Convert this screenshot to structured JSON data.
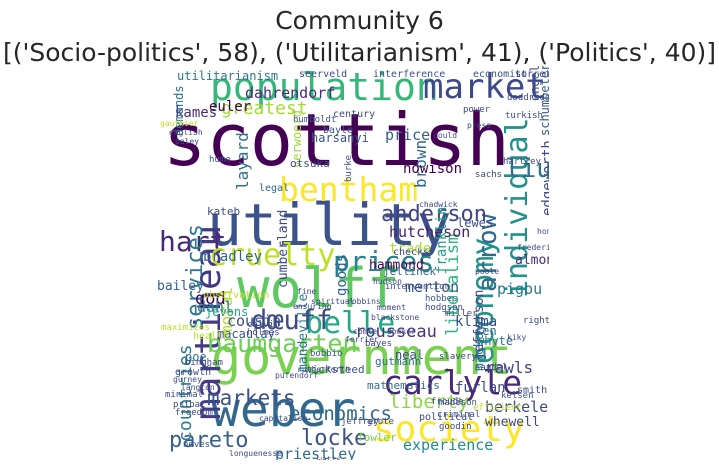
{
  "title_line1": "Community 6",
  "title_line2": "[('Socio-politics', 58), ('Utilitarianism', 41), ('Politics', 40)]",
  "words": [
    {
      "text": "scottish",
      "color": "#440154"
    },
    {
      "text": "utility",
      "color": "#3b528b"
    },
    {
      "text": "wolff",
      "color": "#5ec962"
    },
    {
      "text": "government",
      "color": "#7ad151"
    },
    {
      "text": "weber",
      "color": "#31688e"
    },
    {
      "text": "population",
      "color": "#35b779"
    },
    {
      "text": "market",
      "color": "#3e4989"
    },
    {
      "text": "bentham",
      "color": "#fde725"
    },
    {
      "text": "martineau",
      "color": "#443983"
    },
    {
      "text": "society",
      "color": "#fde725"
    },
    {
      "text": "carlyle",
      "color": "#482878"
    },
    {
      "text": "economy",
      "color": "#21918c"
    },
    {
      "text": "belle",
      "color": "#22a884"
    },
    {
      "text": "individual",
      "color": "#21918c"
    },
    {
      "text": "hart",
      "color": "#482878"
    },
    {
      "text": "cruelty",
      "color": "#bddf26"
    },
    {
      "text": "prices",
      "color": "#26828e"
    },
    {
      "text": "dœuff",
      "color": "#3e4989"
    },
    {
      "text": "baumgarten",
      "color": "#6ece58"
    },
    {
      "text": "pareto",
      "color": "#355f8d"
    },
    {
      "text": "locke",
      "color": "#3b528b"
    },
    {
      "text": "services",
      "color": "#2a788e"
    },
    {
      "text": "liu",
      "color": "#2c728e"
    },
    {
      "text": "arrow",
      "color": "#31688e"
    },
    {
      "text": "anderson",
      "color": "#414487"
    },
    {
      "text": "markets",
      "color": "#3b528b"
    },
    {
      "text": "economics",
      "color": "#31688e"
    },
    {
      "text": "countries",
      "color": "#287c8e"
    },
    {
      "text": "liberty",
      "color": "#8fd744"
    },
    {
      "text": "rousseau",
      "color": "#46327e"
    },
    {
      "text": "liberalism",
      "color": "#2fb47c"
    },
    {
      "text": "greatest",
      "color": "#a5db36"
    },
    {
      "text": "moral",
      "color": "#b5de2b"
    },
    {
      "text": "god",
      "color": "#440154"
    },
    {
      "text": "layard",
      "color": "#2c728e"
    },
    {
      "text": "dahrendorf",
      "color": "#472d7b"
    },
    {
      "text": "utilitarianism",
      "color": "#2a788e"
    },
    {
      "text": "hutcheson",
      "color": "#482173"
    },
    {
      "text": "brown",
      "color": "#31688e"
    },
    {
      "text": "edgeworth",
      "color": "#3e4989"
    },
    {
      "text": "kames",
      "color": "#472d7b"
    },
    {
      "text": "euler",
      "color": "#440154"
    },
    {
      "text": "demands",
      "color": "#2c728e"
    },
    {
      "text": "price",
      "color": "#355f8d"
    },
    {
      "text": "merton",
      "color": "#3b528b"
    },
    {
      "text": "trade",
      "color": "#addc30"
    },
    {
      "text": "dahl",
      "color": "#287c8e"
    },
    {
      "text": "goods",
      "color": "#33638d"
    },
    {
      "text": "cousin",
      "color": "#3b528b"
    },
    {
      "text": "rawls",
      "color": "#414487"
    },
    {
      "text": "berkeley",
      "color": "#3e4989"
    },
    {
      "text": "priestley",
      "color": "#31688e"
    },
    {
      "text": "experience",
      "color": "#228d8d"
    },
    {
      "text": "furlan",
      "color": "#3e4989"
    },
    {
      "text": "whewell",
      "color": "#3e4989"
    },
    {
      "text": "klima",
      "color": "#3e4989"
    },
    {
      "text": "mandeville",
      "color": "#2a788e"
    },
    {
      "text": "bradley",
      "color": "#33638d"
    },
    {
      "text": "howison",
      "color": "#440154"
    },
    {
      "text": "lewes",
      "color": "#3b528b"
    },
    {
      "text": "hammond",
      "color": "#440154"
    },
    {
      "text": "pigou",
      "color": "#2a788e"
    },
    {
      "text": "almond",
      "color": "#472d7b"
    },
    {
      "text": "mackaye",
      "color": "#2a788e"
    },
    {
      "text": "jefferson",
      "color": "#414487"
    },
    {
      "text": "franklin",
      "color": "#20a486"
    },
    {
      "text": "bailey",
      "color": "#355f8d"
    },
    {
      "text": "cumberland",
      "color": "#3e4989"
    },
    {
      "text": "verwoerd",
      "color": "#a0da39"
    },
    {
      "text": "harsanyi",
      "color": "#3b528b"
    },
    {
      "text": "schumpeter",
      "color": "#38598c"
    },
    {
      "text": "engel",
      "color": "#3b528b"
    },
    {
      "text": "jevons",
      "color": "#22a884"
    },
    {
      "text": "wicksteed",
      "color": "#3b528b"
    },
    {
      "text": "macaulay",
      "color": "#3b528b"
    },
    {
      "text": "otsuka",
      "color": "#3e4989"
    },
    {
      "text": "whyte",
      "color": "#2a788e"
    },
    {
      "text": "neal",
      "color": "#3e4989"
    },
    {
      "text": "sen",
      "color": "#31688e"
    },
    {
      "text": "gutmann",
      "color": "#31688e"
    },
    {
      "text": "fowler",
      "color": "#7ad151"
    },
    {
      "text": "jellinek",
      "color": "#31688e"
    },
    {
      "text": "kateb",
      "color": "#3e4989"
    },
    {
      "text": "mathematics",
      "color": "#31688e"
    },
    {
      "text": "observation",
      "color": "#bddf26"
    },
    {
      "text": "seerveld",
      "color": "#3e4989"
    },
    {
      "text": "interference",
      "color": "#3b528b"
    },
    {
      "text": "economist",
      "color": "#3b528b"
    },
    {
      "text": "torretti",
      "color": "#3e4989"
    },
    {
      "text": "century",
      "color": "#3e4989"
    },
    {
      "text": "humboldt",
      "color": "#3b528b"
    },
    {
      "text": "poe",
      "color": "#2a788e"
    },
    {
      "text": "legal",
      "color": "#31688e"
    },
    {
      "text": "hume",
      "color": "#3b528b"
    },
    {
      "text": "checks",
      "color": "#3e4989"
    },
    {
      "text": "bayle",
      "color": "#3b528b"
    },
    {
      "text": "burke",
      "color": "#3b528b"
    },
    {
      "text": "smith",
      "color": "#3e4989"
    },
    {
      "text": "madison",
      "color": "#3b528b"
    },
    {
      "text": "kelsen",
      "color": "#3b528b"
    },
    {
      "text": "bingham",
      "color": "#3e4989"
    },
    {
      "text": "growth",
      "color": "#3e4989"
    },
    {
      "text": "political",
      "color": "#3e4989"
    },
    {
      "text": "goodin",
      "color": "#3e4989"
    },
    {
      "text": "hobbes",
      "color": "#3b528b"
    },
    {
      "text": "bobbio",
      "color": "#3b528b"
    },
    {
      "text": "criminal",
      "color": "#3b528b"
    },
    {
      "text": "freedom",
      "color": "#3e4989"
    },
    {
      "text": "minimal",
      "color": "#3e4989"
    },
    {
      "text": "health",
      "color": "#bddf26"
    },
    {
      "text": "calvin",
      "color": "#3e4989"
    },
    {
      "text": "holmes",
      "color": "#3e4989"
    },
    {
      "text": "maximizes",
      "color": "#bddf26"
    },
    {
      "text": "slavery",
      "color": "#3e4989"
    },
    {
      "text": "hartley",
      "color": "#3e4989"
    },
    {
      "text": "sachs",
      "color": "#3e4989"
    },
    {
      "text": "intervention",
      "color": "#3b528b"
    },
    {
      "text": "hodgson",
      "color": "#3e4989"
    },
    {
      "text": "miller",
      "color": "#3e4989"
    },
    {
      "text": "rights",
      "color": "#3e4989"
    },
    {
      "text": "doddridge",
      "color": "#3e4989"
    },
    {
      "text": "turkish",
      "color": "#3e4989"
    },
    {
      "text": "gauthier",
      "color": "#bddf26"
    },
    {
      "text": "english",
      "color": "#3e4989"
    },
    {
      "text": "paley",
      "color": "#3e4989"
    },
    {
      "text": "bayes",
      "color": "#3e4989"
    },
    {
      "text": "sandel",
      "color": "#3e4989"
    },
    {
      "text": "efficient",
      "color": "#bddf26"
    },
    {
      "text": "froude",
      "color": "#3e4989"
    },
    {
      "text": "pribac",
      "color": "#3e4989"
    },
    {
      "text": "jeffrey",
      "color": "#3e4989"
    },
    {
      "text": "grote",
      "color": "#3e4989"
    },
    {
      "text": "capitalism",
      "color": "#3e4989"
    },
    {
      "text": "neves",
      "color": "#3b528b"
    },
    {
      "text": "longuenesse",
      "color": "#3e4989"
    },
    {
      "text": "watts",
      "color": "#3e4989"
    },
    {
      "text": "ensuring",
      "color": "#3e4989"
    },
    {
      "text": "blackstone",
      "color": "#3e4989"
    },
    {
      "text": "ferrier",
      "color": "#3e4989"
    },
    {
      "text": "spiritual",
      "color": "#3e4989"
    },
    {
      "text": "comte",
      "color": "#3e4989"
    },
    {
      "text": "dowker",
      "color": "#3e4989"
    },
    {
      "text": "chadwick",
      "color": "#3e4989"
    },
    {
      "text": "power",
      "color": "#3e4989"
    },
    {
      "text": "gurney",
      "color": "#3e4989"
    },
    {
      "text": "langton",
      "color": "#3e4989"
    },
    {
      "text": "poole",
      "color": "#3e4989"
    },
    {
      "text": "frederick",
      "color": "#3e4989"
    },
    {
      "text": "honore",
      "color": "#3e4989"
    },
    {
      "text": "press",
      "color": "#3e4989"
    },
    {
      "text": "could",
      "color": "#3e4989"
    },
    {
      "text": "hudson",
      "color": "#3e4989"
    },
    {
      "text": "le",
      "color": "#3e4989"
    },
    {
      "text": "rutherforth",
      "color": "#3e4989"
    },
    {
      "text": "fine",
      "color": "#3e4989"
    },
    {
      "text": "kiky",
      "color": "#3e4989"
    },
    {
      "text": "moment",
      "color": "#3e4989"
    },
    {
      "text": "pufendorf",
      "color": "#3e4989"
    },
    {
      "text": "robbins",
      "color": "#3e4989"
    }
  ]
}
